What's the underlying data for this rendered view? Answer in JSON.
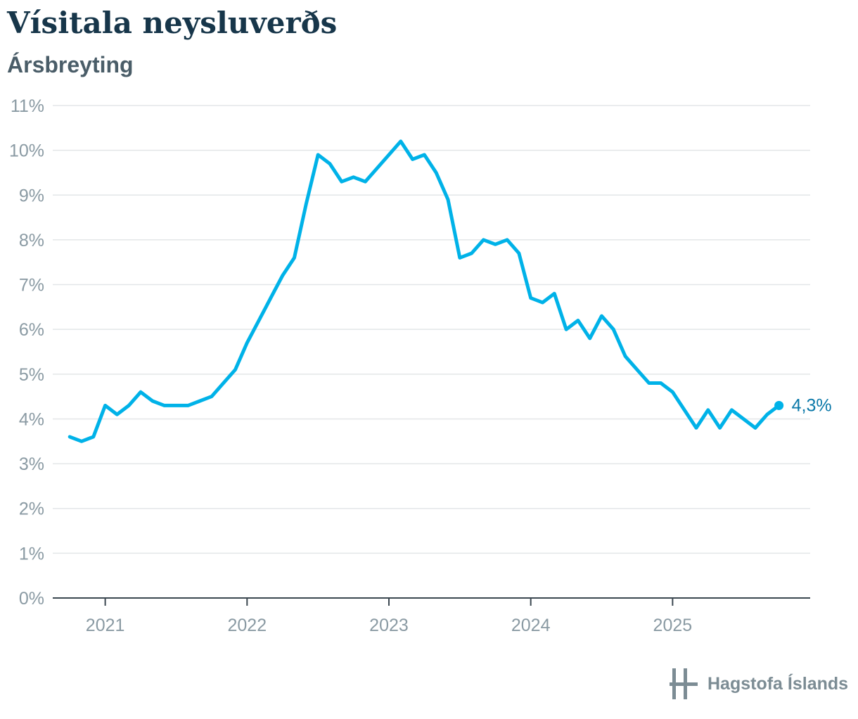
{
  "header": {
    "title": "Vísitala neysluverðs",
    "subtitle": "Ársbreyting"
  },
  "brand": {
    "name": "Hagstofa Íslands",
    "icon": "hagstofa-logo-icon"
  },
  "colors": {
    "line": "#00b2e8",
    "end_label": "#0a78a8",
    "grid": "#e3e6e8",
    "axis": "#3b4750",
    "tick_text": "#8a9aa3"
  },
  "chart_data": {
    "type": "line",
    "title": "Vísitala neysluverðs",
    "subtitle": "Ársbreyting",
    "xlabel": "",
    "ylabel": "",
    "ylim": [
      0,
      11
    ],
    "xlim": [
      2020.63,
      2025.97
    ],
    "y_ticks": [
      0,
      1,
      2,
      3,
      4,
      5,
      6,
      7,
      8,
      9,
      10,
      11
    ],
    "y_tick_labels": [
      "0%",
      "1%",
      "2%",
      "3%",
      "4%",
      "5%",
      "6%",
      "7%",
      "8%",
      "9%",
      "10%",
      "11%"
    ],
    "x_ticks": [
      2021,
      2022,
      2023,
      2024,
      2025
    ],
    "x_tick_labels": [
      "2021",
      "2022",
      "2023",
      "2024",
      "2025"
    ],
    "grid": true,
    "series": [
      {
        "name": "Ársbreyting",
        "start": "2020-10",
        "values": [
          3.6,
          3.5,
          3.6,
          4.3,
          4.1,
          4.3,
          4.6,
          4.4,
          4.3,
          4.3,
          4.3,
          4.4,
          4.5,
          4.8,
          5.1,
          5.7,
          6.2,
          6.7,
          7.2,
          7.6,
          8.8,
          9.9,
          9.7,
          9.3,
          9.4,
          9.3,
          9.6,
          9.9,
          10.2,
          9.8,
          9.9,
          9.5,
          8.9,
          7.6,
          7.7,
          8.0,
          7.9,
          8.0,
          7.7,
          6.7,
          6.6,
          6.8,
          6.0,
          6.2,
          5.8,
          6.3,
          6.0,
          5.4,
          5.1,
          4.8,
          4.8,
          4.6,
          4.2,
          3.8,
          4.2,
          3.8,
          4.2,
          4.0,
          3.8,
          4.1,
          4.3
        ]
      }
    ],
    "end_label": "4,3%"
  }
}
